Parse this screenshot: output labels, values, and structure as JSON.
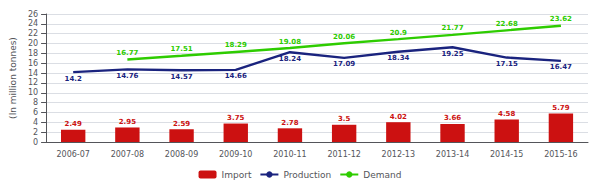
{
  "chart_data": {
    "type": "bar",
    "categories": [
      "2006-07",
      "2007-08",
      "2008-09",
      "2009-10",
      "2010-11",
      "2011-12",
      "2012-13",
      "2013-14",
      "2014-15",
      "2015-16"
    ],
    "series": [
      {
        "name": "Import",
        "type": "bar",
        "color": "#cc1111",
        "values": [
          2.49,
          2.95,
          2.59,
          3.75,
          2.78,
          3.5,
          4.02,
          3.66,
          4.58,
          5.79
        ]
      },
      {
        "name": "Production",
        "type": "line",
        "color": "#1a237e",
        "values": [
          14.2,
          14.76,
          14.57,
          14.66,
          18.24,
          17.09,
          18.34,
          19.25,
          17.15,
          16.47
        ]
      },
      {
        "name": "Demand",
        "type": "line",
        "color": "#2ecc00",
        "values": [
          null,
          16.77,
          17.51,
          18.29,
          19.08,
          20.06,
          20.9,
          21.77,
          22.68,
          23.62
        ]
      }
    ],
    "ylabel": "(In million tonnes)",
    "ylim": [
      0,
      26
    ],
    "yticks": [
      0,
      2,
      4,
      6,
      8,
      10,
      12,
      14,
      16,
      18,
      20,
      22,
      24,
      26
    ],
    "grid": true,
    "legend": "bottom",
    "data_labels": true
  }
}
